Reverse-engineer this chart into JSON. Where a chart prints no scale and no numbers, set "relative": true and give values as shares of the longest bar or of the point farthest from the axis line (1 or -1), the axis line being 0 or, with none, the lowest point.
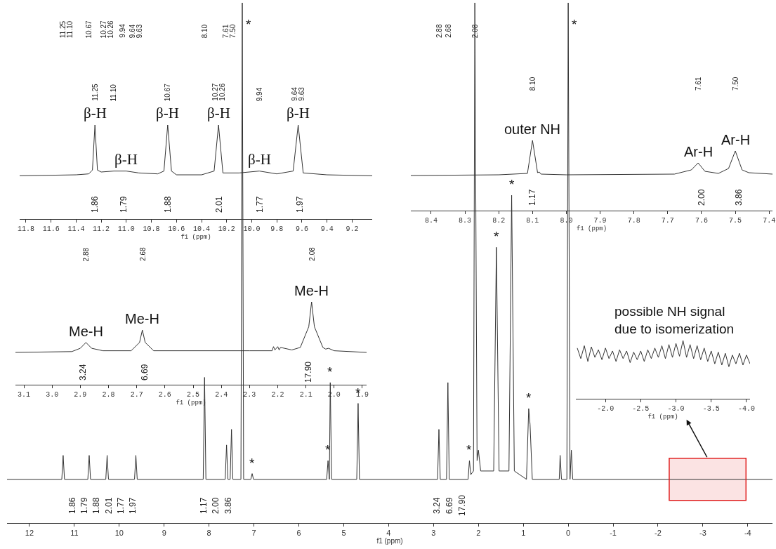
{
  "chart_data": [
    {
      "type": "line",
      "relative": true,
      "xlabel": "f1 (ppm)",
      "tick_labels": "x",
      "color": "#333333",
      "xlim": [
        12.5,
        -4.55
      ],
      "xticks": [
        12,
        11,
        10,
        9,
        8,
        7,
        6,
        5,
        4,
        3,
        2,
        1,
        0,
        -1,
        -2,
        -3,
        -4
      ],
      "x2lim": [
        11.25,
        2.08
      ],
      "x2ticks": [
        11.25,
        {
          "value": 11.1,
          "label": "11.10"
        },
        10.67,
        10.27,
        10.26,
        9.94,
        9.64,
        9.63,
        {
          "value": 8.1,
          "label": "8.10"
        },
        7.61,
        {
          "value": 7.5,
          "label": "7.50"
        },
        2.88,
        2.68,
        2.08
      ],
      "x": [
        12.5,
        11.28,
        11.25,
        11.22,
        10.7,
        10.67,
        10.64,
        10.3,
        10.27,
        10.24,
        9.66,
        9.63,
        9.6,
        8.13,
        8.1,
        8.07,
        7.64,
        7.61,
        7.58,
        7.53,
        7.5,
        7.47,
        7.29,
        7.26,
        7.23,
        7.07,
        7.04,
        7.01,
        5.38,
        5.35,
        5.32,
        5.3,
        5.27,
        4.71,
        4.68,
        4.65,
        2.91,
        2.88,
        2.85,
        2.71,
        2.68,
        2.65,
        2.23,
        2.2,
        2.17,
        2.11,
        2.08,
        2.03,
        2.0,
        1.95,
        1.66,
        1.6,
        1.54,
        1.32,
        1.26,
        1.2,
        0.93,
        0.88,
        0.85,
        0.8,
        0.2,
        0.18,
        0.15,
        0.03,
        0.0,
        -0.04,
        -0.07,
        -0.1,
        -4.55
      ],
      "values": [
        0.084,
        0.084,
        0.13,
        0.084,
        0.084,
        0.13,
        0.084,
        0.084,
        0.13,
        0.084,
        0.084,
        0.13,
        0.084,
        0.084,
        0.28,
        0.084,
        0.084,
        0.15,
        0.084,
        0.084,
        0.18,
        0.084,
        0.084,
        1,
        0.084,
        0.084,
        0.095,
        0.084,
        0.084,
        0.12,
        0.084,
        0.27,
        0.084,
        0.084,
        0.23,
        0.084,
        0.084,
        0.18,
        0.084,
        0.084,
        0.27,
        0.084,
        0.084,
        0.12,
        0.093,
        0.1,
        1,
        0.12,
        0.14,
        0.1,
        0.1,
        0.53,
        0.1,
        0.1,
        0.63,
        0.1,
        0.084,
        0.22,
        0.19,
        0.084,
        0.084,
        0.13,
        0.084,
        0.084,
        1,
        0.084,
        0.14,
        0.084,
        0.084
      ],
      "bands": [
        {
          "axis": "x",
          "from": -2.25,
          "to": -3.96,
          "color": "#e02020"
        }
      ],
      "annotations": [
        {
          "text": "*",
          "x": 7.26,
          "y": 1
        },
        {
          "text": "*",
          "x": 7.04,
          "y": 0.095
        },
        {
          "text": "*",
          "x": 5.35,
          "y": 0.12
        },
        {
          "text": "*",
          "x": 5.3,
          "y": 0.27
        },
        {
          "text": "*",
          "x": 4.68,
          "y": 0.23
        },
        {
          "text": "*",
          "x": 2.2,
          "y": 0.12
        },
        {
          "text": "*",
          "x": 1.6,
          "y": 0.53
        },
        {
          "text": "*",
          "x": 1.26,
          "y": 0.63
        },
        {
          "text": "*",
          "x": 0.88,
          "y": 0.22
        },
        {
          "text": "*",
          "x": 0.0,
          "y": 1
        },
        "possible NH signal due to isomerization",
        "1.86",
        "1.79",
        "1.88",
        "2.01",
        "1.77",
        "1.97",
        "1.17",
        "2.00",
        "3.86",
        "3.24",
        "6.69",
        "17.90"
      ]
    },
    {
      "type": "line",
      "relative": true,
      "xlabel": "f1 (ppm)",
      "tick_labels": "x",
      "color": "#333333",
      "xlim": [
        11.85,
        9.04
      ],
      "xticks": [
        11.8,
        11.6,
        11.4,
        11.2,
        {
          "value": 11,
          "label": "11.0"
        },
        10.8,
        10.6,
        10.4,
        10.2,
        {
          "value": 10,
          "label": "10.0"
        },
        9.8,
        9.6,
        9.4,
        9.2
      ],
      "x2lim": [
        11.25,
        9.63
      ],
      "x2ticks": [
        11.25,
        {
          "value": 11.1,
          "label": "11.10"
        },
        10.67,
        10.27,
        10.26,
        9.94,
        9.64,
        9.63
      ],
      "x": [
        11.85,
        11.4,
        11.3,
        11.27,
        11.25,
        11.23,
        11.2,
        11.1,
        11.0,
        10.9,
        10.75,
        10.7,
        10.67,
        10.64,
        10.6,
        10.4,
        10.3,
        10.265,
        10.23,
        10.1,
        9.94,
        9.8,
        9.67,
        9.63,
        9.59,
        9.4,
        9.04
      ],
      "values": [
        0.46,
        0.47,
        0.48,
        0.52,
        1,
        0.52,
        0.5,
        0.51,
        0.51,
        0.49,
        0.48,
        0.51,
        1,
        0.51,
        0.47,
        0.47,
        0.51,
        1,
        0.49,
        0.49,
        0.51,
        0.48,
        0.51,
        1,
        0.49,
        0.47,
        0.46
      ],
      "annotations": [
        {
          "text": "β-H",
          "x": 11.25,
          "y": 1
        },
        {
          "text": "β-H",
          "x": 11.0,
          "y": 0.51
        },
        {
          "text": "β-H",
          "x": 10.67,
          "y": 1
        },
        {
          "text": "β-H",
          "x": 10.265,
          "y": 1
        },
        {
          "text": "β-H",
          "x": 9.94,
          "y": 0.51
        },
        {
          "text": "β-H",
          "x": 9.63,
          "y": 1
        },
        "1.86",
        "1.79",
        "1.88",
        "2.01",
        "1.77",
        "1.97"
      ]
    },
    {
      "type": "line",
      "relative": true,
      "xlabel": "f1 (ppm)",
      "tick_labels": "x",
      "color": "#333333",
      "xlim": [
        8.46,
        7.39
      ],
      "xticks": [
        8.4,
        8.3,
        8.2,
        8.1,
        {
          "value": 8,
          "label": "8.0"
        },
        7.9,
        7.8,
        7.7,
        7.6,
        7.5,
        7.4
      ],
      "x2lim": [
        8.1,
        7.5
      ],
      "x2ticks": [
        {
          "value": 8.1,
          "label": "8.10"
        },
        7.61,
        {
          "value": 7.5,
          "label": "7.50"
        }
      ],
      "x": [
        8.46,
        8.2,
        8.115,
        8.1,
        8.085,
        8.08,
        8.075,
        8.0,
        7.68,
        7.63,
        7.61,
        7.59,
        7.55,
        7.52,
        7.5,
        7.48,
        7.46,
        7.39
      ],
      "values": [
        0.5,
        0.51,
        0.53,
        1,
        0.54,
        0.55,
        0.52,
        0.51,
        0.52,
        0.58,
        0.68,
        0.56,
        0.53,
        0.6,
        0.85,
        0.58,
        0.54,
        0.52
      ],
      "annotations": [
        {
          "text": "outer NH",
          "x": 8.1,
          "y": 1
        },
        {
          "text": "Ar-H",
          "x": 7.61,
          "y": 0.68
        },
        {
          "text": "Ar-H",
          "x": 7.5,
          "y": 0.85
        },
        "1.17",
        "2.00",
        "3.86"
      ]
    },
    {
      "type": "line",
      "relative": true,
      "xlabel": "f1 (ppm)",
      "tick_labels": "x",
      "color": "#333333",
      "xlim": [
        3.13,
        1.885
      ],
      "xticks": [
        3.1,
        {
          "value": 3,
          "label": "3.0"
        },
        2.9,
        2.8,
        2.7,
        2.6,
        2.5,
        2.4,
        2.3,
        2.2,
        2.1,
        {
          "value": 2,
          "label": "2.0"
        },
        1.9
      ],
      "x2lim": [
        2.88,
        2.08
      ],
      "x2ticks": [
        2.88,
        2.68,
        2.08
      ],
      "x": [
        3.13,
        2.93,
        2.9,
        2.88,
        2.86,
        2.82,
        2.72,
        2.69,
        2.68,
        2.67,
        2.64,
        2.3,
        2.22,
        2.215,
        2.21,
        2.2,
        2.195,
        2.19,
        2.15,
        2.12,
        2.09,
        2.08,
        2.07,
        2.04,
        2.03,
        2.02,
        2.0,
        1.885
      ],
      "values": [
        0.39,
        0.4,
        0.44,
        0.51,
        0.44,
        0.41,
        0.41,
        0.51,
        0.66,
        0.51,
        0.41,
        0.41,
        0.41,
        0.46,
        0.42,
        0.46,
        0.42,
        0.45,
        0.42,
        0.45,
        0.7,
        1,
        0.7,
        0.45,
        0.43,
        0.44,
        0.41,
        0.39
      ],
      "annotations": [
        {
          "text": "Me-H",
          "x": 2.88,
          "y": 0.51
        },
        {
          "text": "Me-H",
          "x": 2.68,
          "y": 0.66
        },
        {
          "text": "Me-H",
          "x": 2.08,
          "y": 1
        },
        "3.24",
        "6.69",
        "17.90"
      ]
    },
    {
      "type": "line",
      "relative": true,
      "xlabel": "f1 (ppm)",
      "tick_labels": "x",
      "color": "#333333",
      "xlim": [
        -1.58,
        -4.05
      ],
      "xticks": [
        {
          "value": -2,
          "label": "-2.0"
        },
        -2.5,
        {
          "value": -3,
          "label": "-3.0"
        },
        -3.5,
        {
          "value": -4,
          "label": "-4.0"
        }
      ],
      "x": [
        -1.6,
        -1.65,
        -1.7,
        -1.75,
        -1.8,
        -1.85,
        -1.9,
        -1.95,
        -2.0,
        -2.05,
        -2.1,
        -2.15,
        -2.2,
        -2.25,
        -2.3,
        -2.35,
        -2.4,
        -2.45,
        -2.5,
        -2.55,
        -2.6,
        -2.65,
        -2.7,
        -2.75,
        -2.8,
        -2.85,
        -2.9,
        -2.95,
        -3.0,
        -3.05,
        -3.1,
        -3.15,
        -3.2,
        -3.25,
        -3.3,
        -3.35,
        -3.4,
        -3.45,
        -3.5,
        -3.55,
        -3.6,
        -3.65,
        -3.7,
        -3.75,
        -3.8,
        -3.85,
        -3.9,
        -3.95,
        -4.0,
        -4.05
      ],
      "values": [
        0.87,
        0.69,
        0.91,
        0.64,
        0.89,
        0.71,
        0.84,
        0.67,
        0.87,
        0.69,
        0.82,
        0.64,
        0.84,
        0.69,
        0.82,
        0.62,
        0.8,
        0.67,
        0.82,
        0.64,
        0.84,
        0.69,
        0.87,
        0.71,
        0.91,
        0.69,
        0.93,
        0.71,
        0.95,
        0.73,
        1,
        0.71,
        0.93,
        0.69,
        0.91,
        0.67,
        0.87,
        0.64,
        0.82,
        0.6,
        0.8,
        0.58,
        0.78,
        0.55,
        0.75,
        0.6,
        0.78,
        0.58,
        0.75,
        0.6
      ]
    }
  ]
}
